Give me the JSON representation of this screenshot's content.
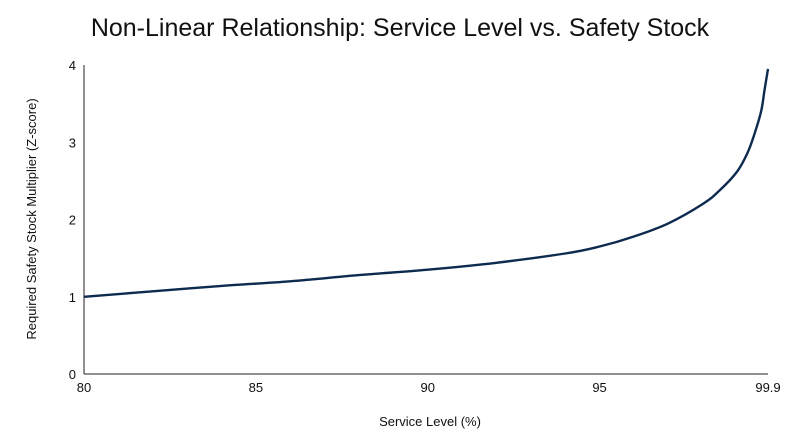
{
  "chart_data": {
    "type": "line",
    "title": "Non-Linear Relationship: Service Level vs. Safety Stock",
    "xlabel": "Service Level (%)",
    "ylabel": "Required Safety Stock Multiplier (Z-score)",
    "xlim": [
      80,
      99.9
    ],
    "ylim": [
      0,
      4
    ],
    "xticks": [
      80,
      85,
      90,
      95,
      99.9
    ],
    "xtick_labels": [
      "80",
      "85",
      "90",
      "95",
      "99.9"
    ],
    "yticks": [
      0,
      1,
      2,
      3,
      4
    ],
    "ytick_labels": [
      "0",
      "1",
      "2",
      "3",
      "4"
    ],
    "grid": false,
    "series_color": "#0d2a4f",
    "x": [
      80,
      82,
      84,
      86,
      88,
      90,
      92,
      94,
      95,
      96,
      97,
      98,
      98.5,
      99,
      99.3,
      99.5,
      99.7,
      99.8,
      99.9
    ],
    "y": [
      1.0,
      1.07,
      1.14,
      1.2,
      1.28,
      1.35,
      1.44,
      1.56,
      1.65,
      1.78,
      1.95,
      2.2,
      2.38,
      2.62,
      2.86,
      3.1,
      3.4,
      3.68,
      3.95
    ]
  }
}
